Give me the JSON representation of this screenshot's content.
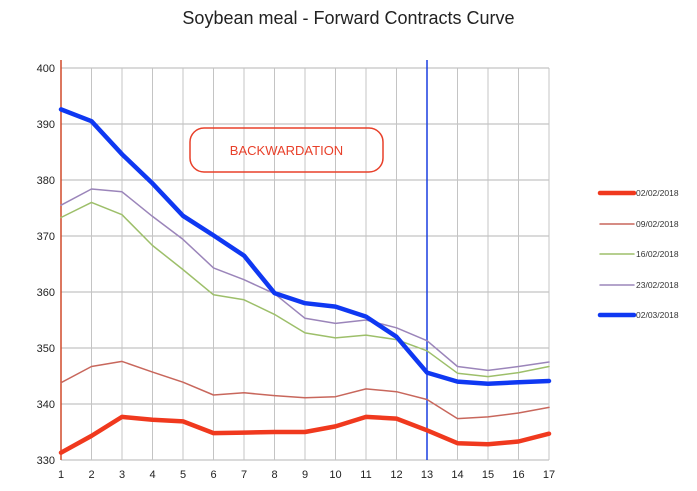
{
  "chart_data": {
    "type": "line",
    "title": "Soybean meal - Forward Contracts Curve",
    "xlabel": "",
    "ylabel": "",
    "x": [
      1,
      2,
      3,
      4,
      5,
      6,
      7,
      8,
      9,
      10,
      11,
      12,
      13,
      14,
      15,
      16,
      17
    ],
    "ylim": [
      330,
      400
    ],
    "yticks": [
      330,
      340,
      350,
      360,
      370,
      380,
      390,
      400
    ],
    "grid": true,
    "legend_position": "right",
    "annotation": "BACKWARDATION",
    "vertical_markers": [
      {
        "x": 1,
        "color": "#d04a2a"
      },
      {
        "x": 13,
        "color": "#1a3fe0"
      }
    ],
    "series": [
      {
        "name": "02/02/2018",
        "color": "#f0391e",
        "width": 4.5,
        "values": [
          331.3,
          334.3,
          337.7,
          337.2,
          336.9,
          334.8,
          334.9,
          335.0,
          335.0,
          336.0,
          337.7,
          337.4,
          335.3,
          333.0,
          332.8,
          333.3,
          334.7
        ]
      },
      {
        "name": "09/02/2018",
        "color": "#c8675c",
        "width": 1.5,
        "values": [
          343.8,
          346.7,
          347.6,
          345.7,
          343.9,
          341.6,
          342.0,
          341.5,
          341.1,
          341.3,
          342.7,
          342.2,
          340.8,
          337.4,
          337.7,
          338.4,
          339.4
        ]
      },
      {
        "name": "16/02/2018",
        "color": "#9dbf6a",
        "width": 1.5,
        "values": [
          373.3,
          376.0,
          373.8,
          368.3,
          364.0,
          359.5,
          358.6,
          356.0,
          352.7,
          351.8,
          352.3,
          351.5,
          349.5,
          345.5,
          344.9,
          345.6,
          346.7
        ]
      },
      {
        "name": "23/02/2018",
        "color": "#9b85ba",
        "width": 1.5,
        "values": [
          375.5,
          378.4,
          377.9,
          373.5,
          369.4,
          364.3,
          362.2,
          359.7,
          355.3,
          354.4,
          355.0,
          353.6,
          351.3,
          346.7,
          346.0,
          346.7,
          347.5
        ]
      },
      {
        "name": "02/03/2018",
        "color": "#0f38f2",
        "width": 4.5,
        "values": [
          392.6,
          390.5,
          384.6,
          379.4,
          373.6,
          370.1,
          366.5,
          359.8,
          358.0,
          357.4,
          355.6,
          352.0,
          345.6,
          344.0,
          343.6,
          343.9,
          344.1
        ]
      }
    ]
  }
}
